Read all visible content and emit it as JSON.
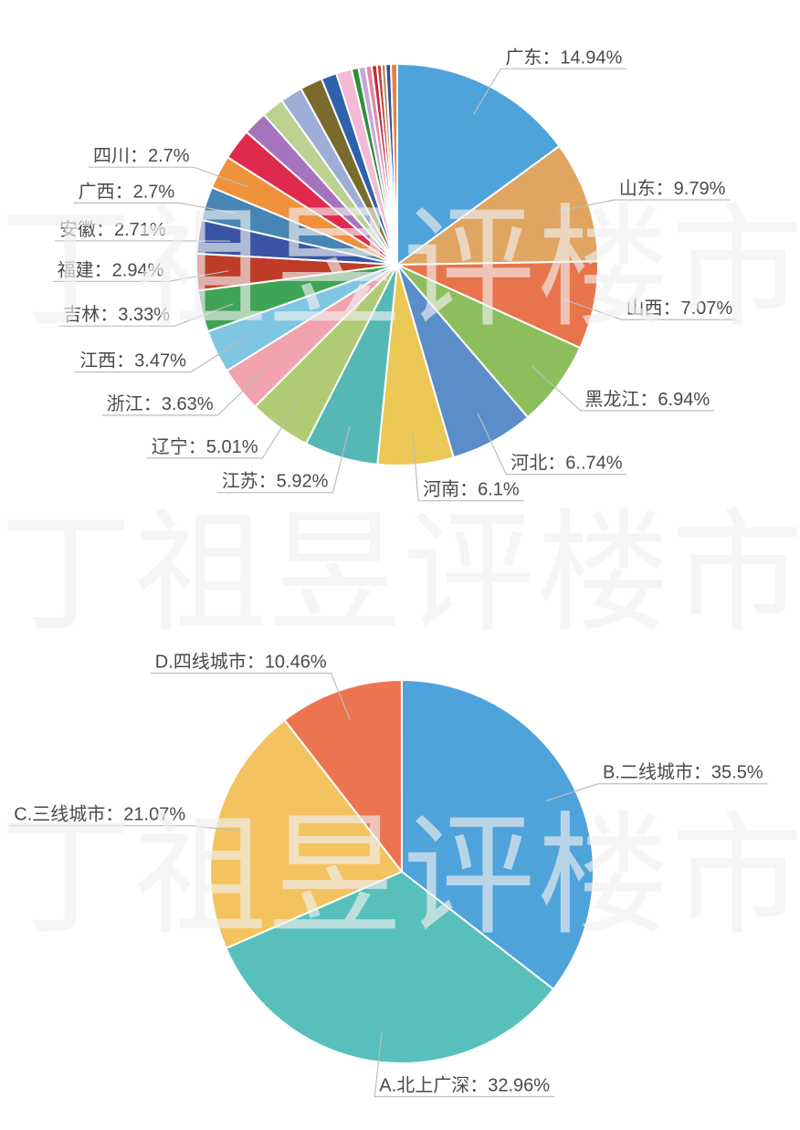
{
  "watermark": {
    "text": "丁祖昱评楼市"
  },
  "colors": {
    "background": "#ffffff",
    "label_text": "#4a4a4a",
    "leader_line": "#bdbdbd",
    "slice_divider": "#ffffff"
  },
  "chart_data": [
    {
      "type": "pie",
      "title": "",
      "legend_position": "none",
      "description": "province-distribution-pie",
      "start_angle_deg": 0,
      "direction": "clockwise",
      "series": [
        {
          "name": "广东",
          "value": 14.94,
          "label_text": "广东：14.94%",
          "color": "#4FA3DB"
        },
        {
          "name": "山东",
          "value": 9.79,
          "label_text": "山东：9.79%",
          "color": "#DFA561"
        },
        {
          "name": "山西",
          "value": 7.07,
          "label_text": "山西：7.07%",
          "color": "#E8744C"
        },
        {
          "name": "黑龙江",
          "value": 6.94,
          "label_text": "黑龙江：6.94%",
          "color": "#8CBF5C"
        },
        {
          "name": "河北",
          "value": 6.74,
          "label_text": "河北：6..74%",
          "color": "#5B8DC9"
        },
        {
          "name": "河南",
          "value": 6.1,
          "label_text": "河南：6.1%",
          "color": "#EBC755"
        },
        {
          "name": "江苏",
          "value": 5.92,
          "label_text": "江苏：5.92%",
          "color": "#55B8B4"
        },
        {
          "name": "辽宁",
          "value": 5.01,
          "label_text": "辽宁：5.01%",
          "color": "#AFCB74"
        },
        {
          "name": "浙江",
          "value": 3.63,
          "label_text": "浙江：3.63%",
          "color": "#F0A3AC"
        },
        {
          "name": "江西",
          "value": 3.47,
          "label_text": "江西：3.47%",
          "color": "#7EC6E2"
        },
        {
          "name": "吉林",
          "value": 3.33,
          "label_text": "吉林：3.33%",
          "color": "#3FA456"
        },
        {
          "name": "福建",
          "value": 2.94,
          "label_text": "福建：2.94%",
          "color": "#BF3C28"
        },
        {
          "name": "安徽",
          "value": 2.71,
          "label_text": "安徽：2.71%",
          "color": "#3A55A4"
        },
        {
          "name": "广西",
          "value": 2.7,
          "label_text": "广西：2.7%",
          "color": "#4785B5"
        },
        {
          "name": "四川",
          "value": 2.7,
          "label_text": "四川：2.7%",
          "color": "#F0913B"
        },
        {
          "name": "",
          "value": 2.5,
          "label_text": "",
          "color": "#E02A4D"
        },
        {
          "name": "",
          "value": 1.95,
          "label_text": "",
          "color": "#A674BF"
        },
        {
          "name": "",
          "value": 1.8,
          "label_text": "",
          "color": "#BCD291"
        },
        {
          "name": "",
          "value": 1.8,
          "label_text": "",
          "color": "#9FAED6"
        },
        {
          "name": "",
          "value": 1.8,
          "label_text": "",
          "color": "#7A6A2E"
        },
        {
          "name": "",
          "value": 1.25,
          "label_text": "",
          "color": "#2F62AE"
        },
        {
          "name": "",
          "value": 1.25,
          "label_text": "",
          "color": "#F3BAD4"
        },
        {
          "name": "",
          "value": 0.56,
          "label_text": "",
          "color": "#2E8F3C"
        },
        {
          "name": "",
          "value": 0.56,
          "label_text": "",
          "color": "#C7A6D8"
        },
        {
          "name": "",
          "value": 0.5,
          "label_text": "",
          "color": "#E389A9"
        },
        {
          "name": "",
          "value": 0.42,
          "label_text": "",
          "color": "#C32A41"
        },
        {
          "name": "",
          "value": 0.36,
          "label_text": "",
          "color": "#CB3A28"
        },
        {
          "name": "",
          "value": 0.33,
          "label_text": "",
          "color": "#A69568"
        },
        {
          "name": "",
          "value": 0.42,
          "label_text": "",
          "color": "#39499B"
        },
        {
          "name": "",
          "value": 0.51,
          "label_text": "",
          "color": "#E8833C"
        }
      ]
    },
    {
      "type": "pie",
      "title": "",
      "legend_position": "none",
      "description": "city-tier-distribution-pie",
      "start_angle_deg": 0,
      "direction": "clockwise",
      "series": [
        {
          "name": "B.二线城市",
          "value": 35.5,
          "label_text": "B.二线城市：35.5%",
          "color": "#4FA3DB"
        },
        {
          "name": "A.北上广深",
          "value": 32.96,
          "label_text": "A.北上广深：32.96%",
          "color": "#57C0BA",
          "label_side": "right"
        },
        {
          "name": "C.三线城市",
          "value": 21.07,
          "label_text": "C.三线城市：21.07%",
          "color": "#F4C35F"
        },
        {
          "name": "D.四线城市",
          "value": 10.46,
          "label_text": "D.四线城市：10.46%",
          "color": "#EC7450"
        }
      ]
    }
  ]
}
